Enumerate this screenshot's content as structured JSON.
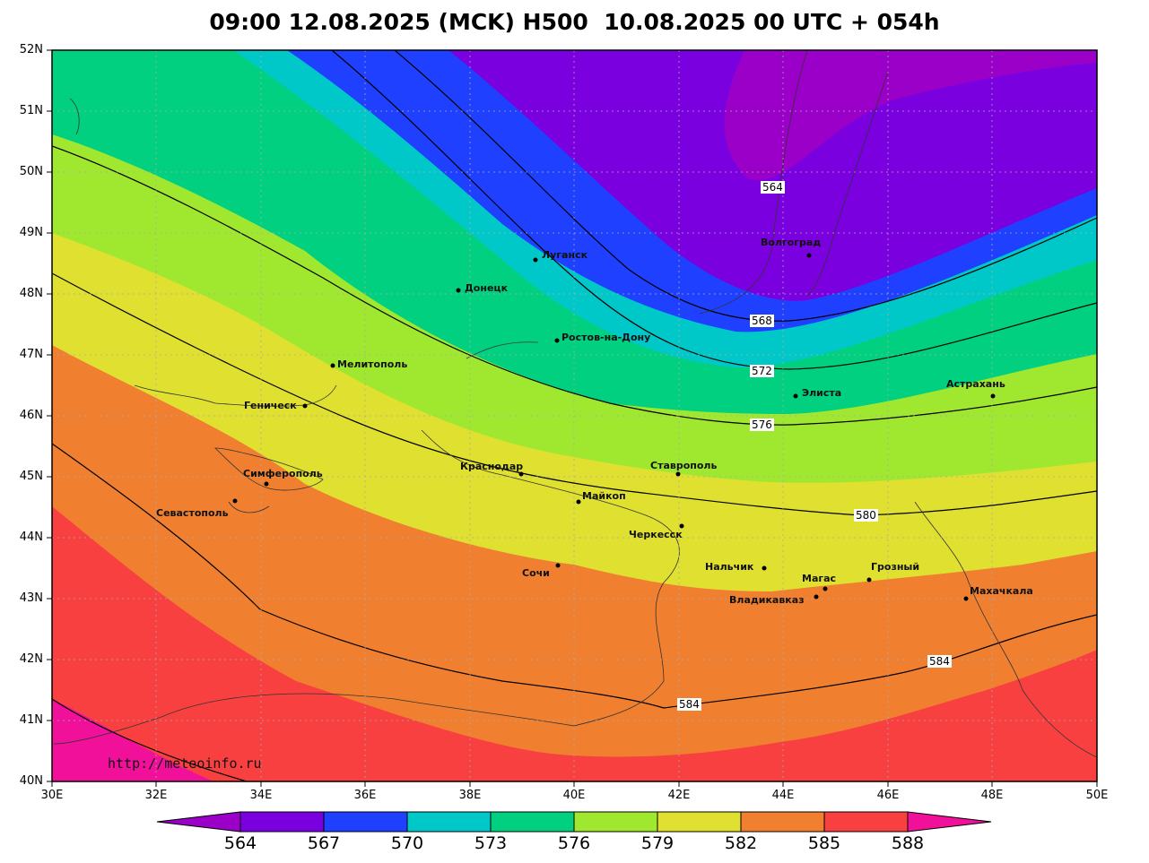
{
  "title": "09:00 12.08.2025 (MCK) H500  10.08.2025 00 UTC + 054h",
  "watermark": "http://meteoinfo.ru",
  "lat_labels": [
    "52N",
    "51N",
    "50N",
    "49N",
    "48N",
    "47N",
    "46N",
    "45N",
    "44N",
    "43N",
    "42N",
    "41N",
    "40N"
  ],
  "lon_labels": [
    "30E",
    "32E",
    "34E",
    "36E",
    "38E",
    "40E",
    "42E",
    "44E",
    "46E",
    "48E",
    "50E"
  ],
  "colorbar": {
    "labels": [
      "564",
      "567",
      "570",
      "573",
      "576",
      "579",
      "582",
      "585",
      "588"
    ],
    "colors": [
      "#9b00c8",
      "#7a00e0",
      "#2040ff",
      "#00c8c8",
      "#00d080",
      "#a0e830",
      "#e0e030",
      "#f08030",
      "#f84040",
      "#f0109a"
    ]
  },
  "contour_labels": [
    "564",
    "568",
    "572",
    "576",
    "580",
    "584",
    "584"
  ],
  "cities": [
    "Волгоград",
    "Луганск",
    "Донецк",
    "Ростов-на-Дону",
    "Мелитополь",
    "Геническ",
    "Элиста",
    "Астрахань",
    "Ставрополь",
    "Краснодар",
    "Симферополь",
    "Севастополь",
    "Майкоп",
    "Черкесск",
    "Нальчик",
    "Сочи",
    "Магас",
    "Грозный",
    "Владикавказ",
    "Махачкала"
  ]
}
